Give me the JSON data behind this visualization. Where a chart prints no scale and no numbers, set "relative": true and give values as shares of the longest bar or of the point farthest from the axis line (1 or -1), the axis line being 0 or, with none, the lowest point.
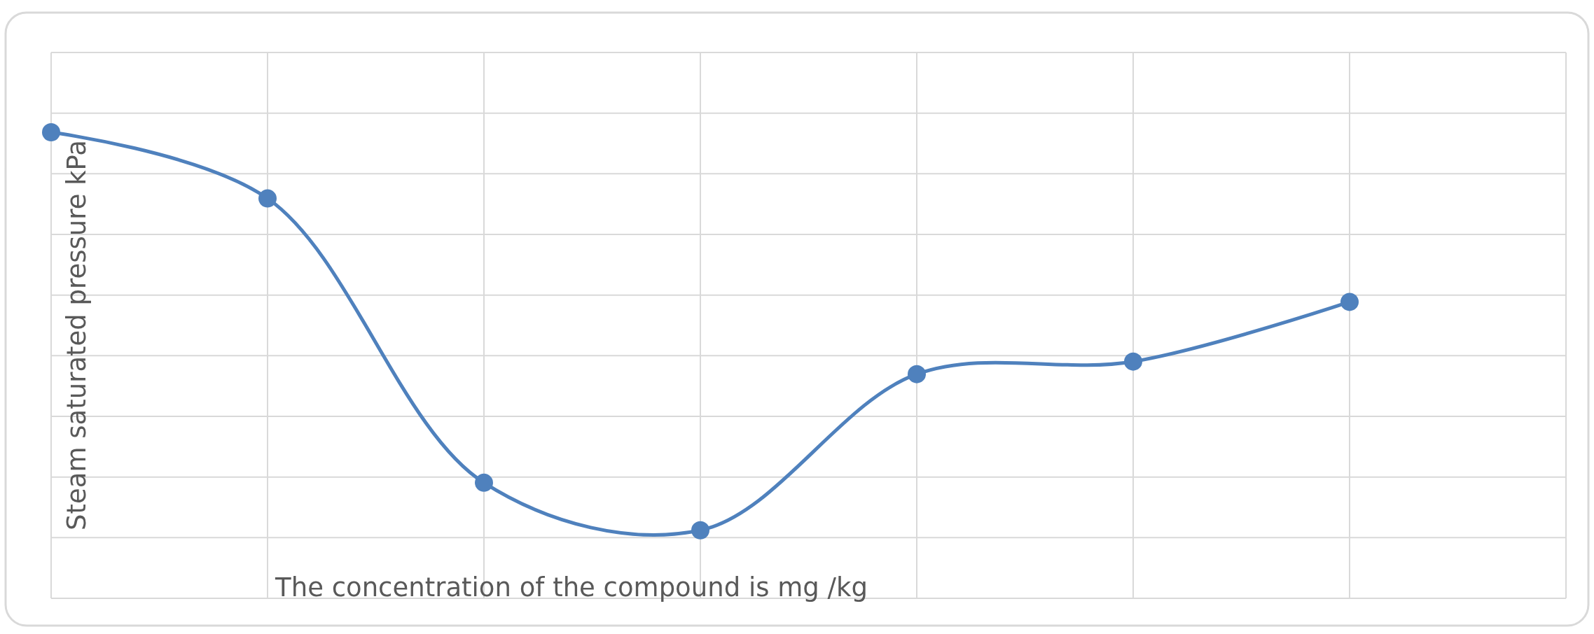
{
  "chart_data": {
    "type": "line",
    "xlabel": "The concentration of the compound is mg /kg",
    "ylabel": "Steam saturated pressure kPa",
    "relative": true,
    "categories": [
      null,
      null,
      null,
      null,
      null,
      null,
      null,
      null
    ],
    "series": [
      {
        "color": "#4f81bd",
        "values": [
          1,
          0.858,
          0.248,
          0.146,
          0.481,
          0.508,
          0.636,
          null
        ]
      }
    ],
    "grid": true,
    "marker": "circle"
  }
}
